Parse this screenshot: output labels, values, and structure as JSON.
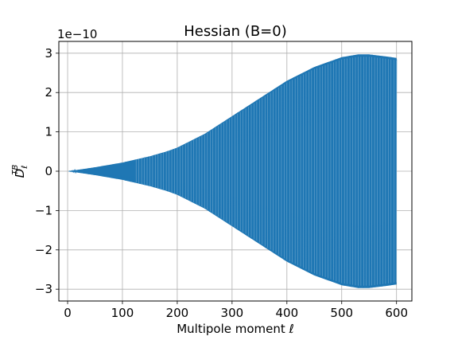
{
  "chart_data": {
    "type": "line",
    "title": "Hessian (B=0)",
    "xlabel": "Multipole moment ℓ",
    "ylabel": "D",
    "ylabel_sub": "ℓ",
    "ylabel_sup": "TB",
    "y_scale_label": "1e−10",
    "xlim": [
      -16,
      628
    ],
    "ylim": [
      -3.3,
      3.3
    ],
    "x_ticks": [
      0,
      100,
      200,
      300,
      400,
      500,
      600
    ],
    "x_tick_labels": [
      "0",
      "100",
      "200",
      "300",
      "400",
      "500",
      "600"
    ],
    "y_ticks": [
      -3,
      -2,
      -1,
      0,
      1,
      2,
      3
    ],
    "y_tick_labels": [
      "−3",
      "−2",
      "−1",
      "0",
      "1",
      "2",
      "3"
    ],
    "grid": true,
    "series": [
      {
        "color": "#1f77b4",
        "envelope_x": [
          2,
          50,
          100,
          150,
          180,
          200,
          250,
          300,
          350,
          400,
          450,
          500,
          530,
          550,
          580,
          600
        ],
        "envelope_max": [
          0.0,
          0.1,
          0.22,
          0.38,
          0.5,
          0.6,
          0.95,
          1.4,
          1.85,
          2.3,
          2.65,
          2.9,
          2.97,
          2.97,
          2.92,
          2.88
        ],
        "x_start": 2,
        "x_end": 600
      }
    ]
  }
}
